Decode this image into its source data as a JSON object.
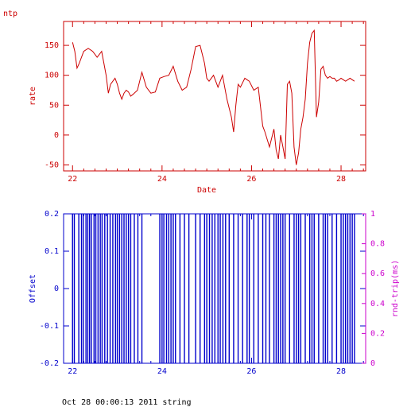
{
  "title": "ntp",
  "footer": "Oct 28 00:00:13 2011 string",
  "colors": {
    "top": "#cc0000",
    "offset": "#0000cc",
    "rtrip": "#cc00cc"
  },
  "chart_data": [
    {
      "type": "line",
      "title": "ntp",
      "xlabel": "Date",
      "ylabel": "rate",
      "xlim": [
        21.8,
        28.55
      ],
      "ylim": [
        -60,
        190
      ],
      "xticks": [
        22,
        24,
        26,
        28
      ],
      "yticks": [
        -50,
        0,
        50,
        100,
        150
      ],
      "series": [
        {
          "x": [
            22.0,
            22.05,
            22.1,
            22.15,
            22.25,
            22.35,
            22.45,
            22.55,
            22.65,
            22.7,
            22.75,
            22.8,
            22.85,
            22.9,
            22.95,
            23.0,
            23.05,
            23.1,
            23.15,
            23.2,
            23.25,
            23.3,
            23.35,
            23.45,
            23.55,
            23.65,
            23.75,
            23.85,
            23.95,
            24.05,
            24.15,
            24.25,
            24.35,
            24.45,
            24.55,
            24.65,
            24.75,
            24.85,
            24.95,
            25.0,
            25.05,
            25.1,
            25.15,
            25.25,
            25.35,
            25.45,
            25.55,
            25.6,
            25.65,
            25.7,
            25.75,
            25.85,
            25.95,
            26.05,
            26.15,
            26.25,
            26.3,
            26.4,
            26.5,
            26.55,
            26.6,
            26.65,
            26.7,
            26.75,
            26.8,
            26.85,
            26.9,
            26.95,
            27.0,
            27.05,
            27.1,
            27.15,
            27.2,
            27.25,
            27.3,
            27.35,
            27.4,
            27.45,
            27.5,
            27.55,
            27.6,
            27.65,
            27.7,
            27.75,
            27.8,
            27.85,
            27.9,
            27.95,
            28.0,
            28.1,
            28.2,
            28.3
          ],
          "y": [
            155,
            140,
            112,
            120,
            140,
            145,
            140,
            130,
            140,
            120,
            100,
            70,
            85,
            90,
            95,
            85,
            70,
            60,
            70,
            75,
            72,
            65,
            68,
            75,
            105,
            80,
            70,
            72,
            95,
            98,
            100,
            115,
            90,
            75,
            80,
            110,
            148,
            150,
            120,
            95,
            90,
            95,
            100,
            80,
            100,
            60,
            30,
            5,
            50,
            85,
            80,
            95,
            90,
            75,
            80,
            15,
            5,
            -20,
            10,
            -25,
            -40,
            0,
            -20,
            -40,
            85,
            90,
            70,
            -20,
            -50,
            -30,
            10,
            30,
            60,
            120,
            155,
            170,
            175,
            30,
            55,
            110,
            115,
            100,
            95,
            98,
            95,
            95,
            90,
            92,
            95,
            90,
            95,
            90
          ]
        }
      ]
    },
    {
      "type": "bar",
      "xlabel": "",
      "ylabel": "Offset",
      "y2label": "rnd-trip(ms)",
      "xlim": [
        21.8,
        28.55
      ],
      "ylim": [
        -0.2,
        0.2
      ],
      "y2lim": [
        0,
        1
      ],
      "xticks": [
        22,
        24,
        26,
        28
      ],
      "yticks": [
        -0.2,
        -0.1,
        0,
        0.1,
        0.2
      ],
      "y2ticks": [
        0,
        0.2,
        0.4,
        0.6,
        0.8,
        1
      ],
      "series": [
        {
          "name": "Offset",
          "x": [
            22.0,
            22.04,
            22.14,
            22.2,
            22.24,
            22.3,
            22.34,
            22.38,
            22.42,
            22.48,
            22.52,
            22.57,
            22.62,
            22.66,
            22.72,
            22.78,
            22.84,
            22.9,
            22.96,
            23.0,
            23.05,
            23.1,
            23.15,
            23.2,
            23.25,
            23.3,
            23.38,
            23.46,
            23.55,
            23.95,
            24.0,
            24.04,
            24.1,
            24.15,
            24.2,
            24.25,
            24.3,
            24.4,
            24.5,
            24.6,
            24.75,
            24.85,
            24.95,
            25.0,
            25.06,
            25.12,
            25.18,
            25.25,
            25.3,
            25.36,
            25.42,
            25.5,
            25.6,
            25.7,
            25.8,
            25.9,
            25.95,
            26.05,
            26.15,
            26.25,
            26.32,
            26.4,
            26.5,
            26.55,
            26.6,
            26.65,
            26.7,
            26.75,
            26.85,
            26.95,
            27.0,
            27.05,
            27.1,
            27.2,
            27.3,
            27.35,
            27.4,
            27.5,
            27.6,
            27.65,
            27.7,
            27.8,
            27.9,
            28.0,
            28.05,
            28.1,
            28.15,
            28.2,
            28.25,
            28.3
          ],
          "y": [
            -0.2,
            -0.2,
            -0.2,
            -0.2,
            -0.2,
            -0.2,
            -0.2,
            -0.2,
            -0.2,
            -0.2,
            -0.2,
            -0.2,
            -0.2,
            -0.2,
            -0.2,
            -0.2,
            -0.2,
            -0.2,
            -0.2,
            -0.2,
            -0.2,
            -0.2,
            -0.2,
            -0.2,
            -0.2,
            -0.2,
            -0.2,
            -0.2,
            -0.2,
            -0.2,
            -0.2,
            -0.2,
            -0.2,
            -0.2,
            -0.2,
            -0.2,
            -0.2,
            -0.2,
            -0.2,
            -0.2,
            -0.2,
            -0.2,
            -0.2,
            -0.2,
            -0.2,
            -0.2,
            -0.2,
            -0.2,
            -0.2,
            -0.2,
            -0.2,
            -0.2,
            -0.2,
            -0.2,
            -0.2,
            -0.2,
            -0.2,
            -0.2,
            -0.2,
            -0.2,
            -0.2,
            -0.2,
            -0.2,
            -0.2,
            -0.2,
            -0.2,
            -0.2,
            -0.2,
            -0.2,
            -0.2,
            -0.2,
            -0.2,
            -0.2,
            -0.2,
            -0.2,
            -0.2,
            -0.2,
            -0.2,
            -0.2,
            -0.2,
            -0.2,
            -0.2,
            -0.2,
            -0.2,
            -0.2,
            -0.2,
            -0.2,
            -0.2,
            -0.2,
            -0.2
          ],
          "y_top": [
            0.2,
            0.2,
            0.2,
            0.2,
            0.2,
            0.2,
            0.2,
            0.2,
            0.2,
            0.2,
            0.2,
            0.2,
            0.2,
            0.2,
            0.2,
            0.2,
            0.2,
            0.2,
            0.2,
            0.2,
            0.2,
            0.2,
            0.2,
            0.2,
            0.2,
            0.2,
            0.2,
            0.2,
            0.2,
            0.2,
            0.2,
            0.2,
            0.2,
            0.2,
            0.2,
            0.2,
            0.2,
            0.2,
            0.2,
            0.2,
            0.2,
            0.2,
            0.2,
            0.2,
            0.2,
            0.2,
            0.2,
            0.2,
            0.2,
            0.2,
            0.2,
            0.2,
            0.2,
            0.2,
            0.2,
            0.2,
            0.2,
            0.2,
            0.2,
            0.2,
            0.2,
            0.2,
            0.2,
            0.2,
            0.2,
            0.2,
            0.2,
            0.2,
            0.2,
            0.2,
            0.2,
            0.2,
            0.2,
            0.2,
            0.2,
            0.2,
            0.2,
            0.2,
            0.2,
            0.2,
            0.2,
            0.2,
            0.2,
            0.2,
            0.2,
            0.2,
            0.2,
            0.2,
            0.2,
            0.2
          ]
        }
      ]
    }
  ]
}
